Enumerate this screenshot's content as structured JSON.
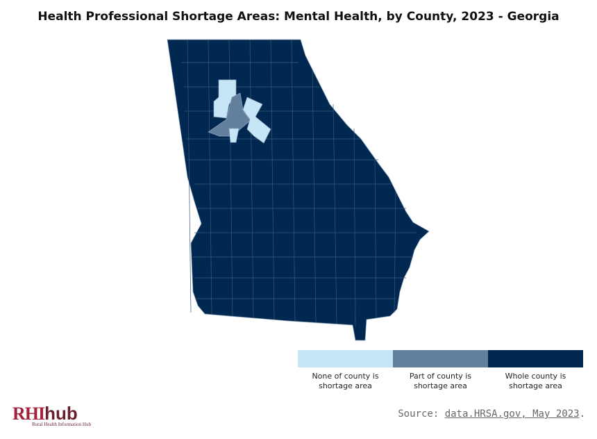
{
  "title": "Health Professional Shortage Areas: Mental Health, by County, 2023 - Georgia",
  "legend": {
    "items": [
      {
        "label": "None of county is shortage area",
        "color": "#c6e6f7"
      },
      {
        "label": "Part of county is shortage area",
        "color": "#62809e"
      },
      {
        "label": "Whole county is shortage area",
        "color": "#002851"
      }
    ]
  },
  "source": {
    "prefix": "Source:",
    "link": "data.HRSA.gov, May 2023",
    "suffix": "."
  },
  "logo": {
    "brand": "RHI",
    "suffix": "hub",
    "tagline": "Rural Health Information Hub"
  }
}
